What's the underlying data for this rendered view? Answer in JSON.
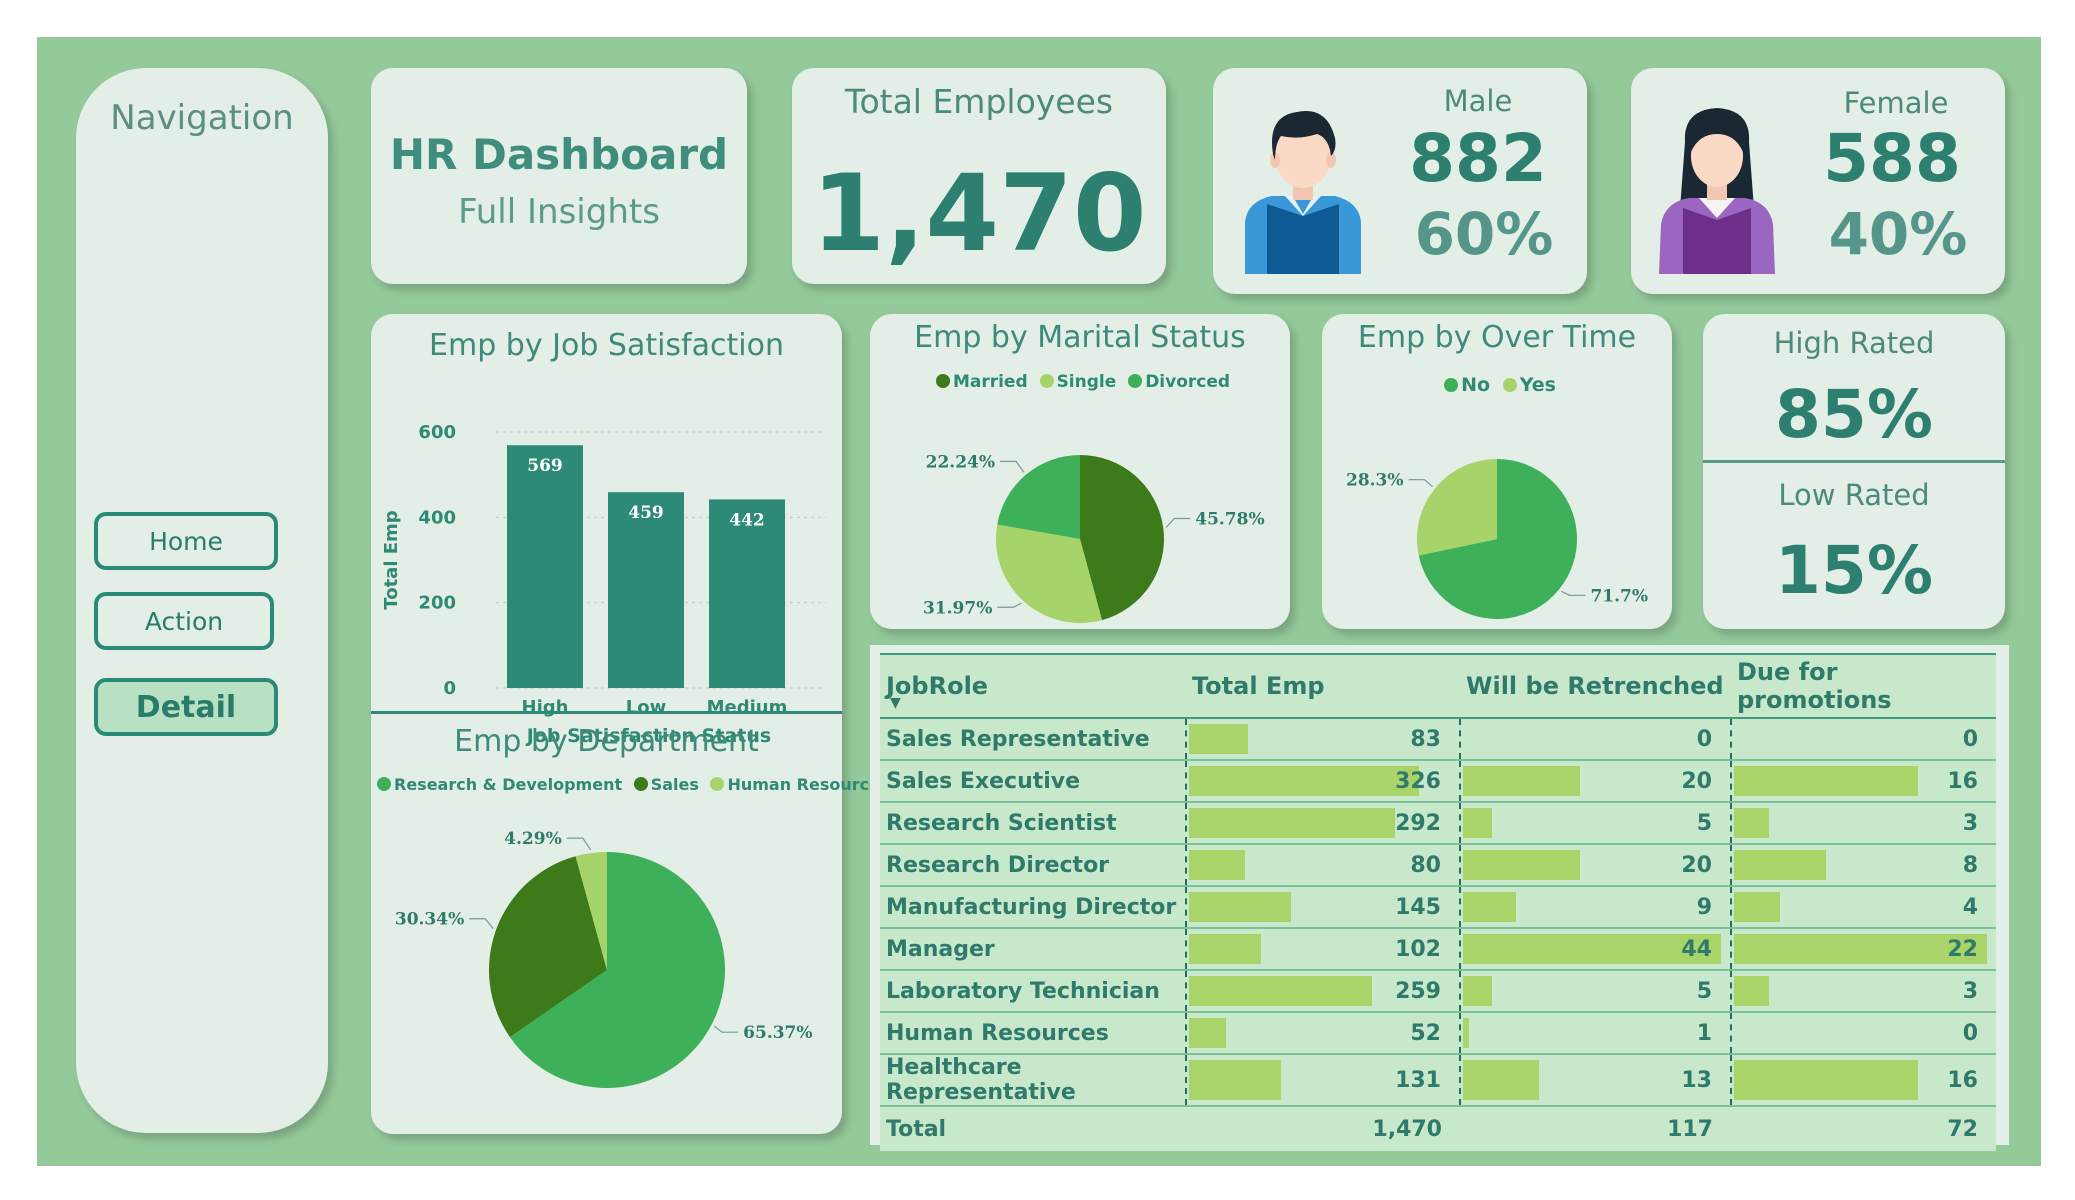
{
  "navigation": {
    "title": "Navigation",
    "buttons": [
      {
        "label": "Home"
      },
      {
        "label": "Action"
      },
      {
        "label": "Detail"
      }
    ]
  },
  "header": {
    "title": "HR Dashboard",
    "subtitle": "Full Insights"
  },
  "kpis": {
    "total_label": "Total Employees",
    "total_value": "1,470",
    "male_label": "Male",
    "male_count": "882",
    "male_pct": "60%",
    "female_label": "Female",
    "female_count": "588",
    "female_pct": "40%",
    "high_rated_label": "High Rated",
    "high_rated_value": "85%",
    "low_rated_label": "Low Rated",
    "low_rated_value": "15%"
  },
  "colors": {
    "dark_green": "#3d7a1a",
    "mid_green": "#3fb05a",
    "light_green": "#a6d46a",
    "teal": "#2d8a77"
  },
  "chart_data": [
    {
      "id": "job_satisfaction",
      "type": "bar",
      "title": "Emp by Job Satisfaction",
      "categories": [
        "High",
        "Low",
        "Medium"
      ],
      "values": [
        569,
        459,
        442
      ],
      "xlabel": "Job Satisfaction Status",
      "ylabel": "Total Emp",
      "ylim": [
        0,
        600
      ],
      "yticks": [
        0,
        200,
        400,
        600
      ]
    },
    {
      "id": "marital_status",
      "type": "pie",
      "title": "Emp by Marital Status",
      "labels": [
        "Married",
        "Single",
        "Divorced"
      ],
      "values": [
        45.78,
        31.97,
        22.24
      ],
      "display": [
        "45.78%",
        "31.97%",
        "22.24%"
      ],
      "colors": [
        "#3d7a1a",
        "#a6d46a",
        "#3fb05a"
      ]
    },
    {
      "id": "over_time",
      "type": "pie",
      "title": "Emp by Over Time",
      "labels": [
        "No",
        "Yes"
      ],
      "values": [
        71.7,
        28.3
      ],
      "display": [
        "71.7%",
        "28.3%"
      ],
      "colors": [
        "#3fb05a",
        "#a6d46a"
      ]
    },
    {
      "id": "department",
      "type": "pie",
      "title": "Emp by Department",
      "labels": [
        "Research & Development",
        "Sales",
        "Human Resources"
      ],
      "values": [
        65.37,
        30.34,
        4.29
      ],
      "display": [
        "65.37%",
        "30.34%",
        "4.29%"
      ],
      "colors": [
        "#3fb05a",
        "#3d7a1a",
        "#a6d46a"
      ]
    }
  ],
  "table": {
    "headers": [
      "JobRole",
      "Total Emp",
      "Will be Retrenched",
      "Due for promotions"
    ],
    "rows": [
      {
        "role": "Sales Representative",
        "total": "83",
        "retrenched": "0",
        "promotions": "0"
      },
      {
        "role": "Sales Executive",
        "total": "326",
        "retrenched": "20",
        "promotions": "16"
      },
      {
        "role": "Research Scientist",
        "total": "292",
        "retrenched": "5",
        "promotions": "3"
      },
      {
        "role": "Research Director",
        "total": "80",
        "retrenched": "20",
        "promotions": "8"
      },
      {
        "role": "Manufacturing Director",
        "total": "145",
        "retrenched": "9",
        "promotions": "4"
      },
      {
        "role": "Manager",
        "total": "102",
        "retrenched": "44",
        "promotions": "22"
      },
      {
        "role": "Laboratory Technician",
        "total": "259",
        "retrenched": "5",
        "promotions": "3"
      },
      {
        "role": "Human Resources",
        "total": "52",
        "retrenched": "1",
        "promotions": "0"
      },
      {
        "role": "Healthcare Representative",
        "total": "131",
        "retrenched": "13",
        "promotions": "16"
      }
    ],
    "totals": {
      "label": "Total",
      "total": "1,470",
      "retrenched": "117",
      "promotions": "72"
    }
  }
}
